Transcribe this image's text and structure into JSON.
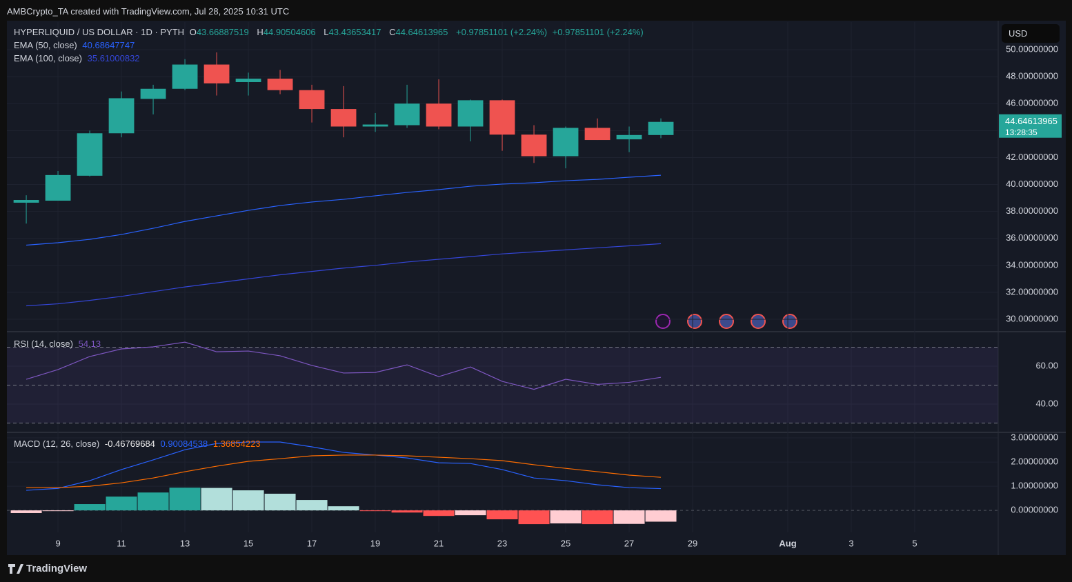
{
  "header": "AMBCrypto_TA created with TradingView.com, Jul 28, 2025 10:31 UTC",
  "currency": "USD",
  "brand": "TradingView",
  "chart_data": [
    {
      "type": "candlestick",
      "title": "HYPERLIQUID / US DOLLAR · 1D · PYTH",
      "ohlc_labels": [
        "O",
        "H",
        "L",
        "C"
      ],
      "change": "+0.97851101 (+2.24%)",
      "countdown": "13:28:35",
      "up_color": "#26a69a",
      "down_color": "#ef5350",
      "x": [
        8,
        9,
        10,
        11,
        12,
        13,
        14,
        15,
        16,
        17,
        18,
        19,
        20,
        21,
        22,
        23,
        24,
        25,
        26,
        27,
        28
      ],
      "open": [
        38.65,
        38.8,
        40.65,
        43.8,
        46.35,
        47.1,
        48.9,
        47.6,
        47.85,
        47.0,
        45.6,
        44.3,
        44.4,
        46.0,
        44.3,
        46.25,
        43.7,
        42.1,
        44.2,
        43.35,
        43.66887519
      ],
      "high": [
        39.2,
        41.0,
        44.0,
        46.9,
        47.4,
        49.3,
        49.8,
        48.3,
        48.5,
        47.4,
        47.3,
        45.3,
        47.4,
        47.8,
        46.3,
        46.3,
        44.4,
        44.3,
        44.9,
        44.3,
        44.90504606
      ],
      "low": [
        37.1,
        38.8,
        40.6,
        43.5,
        45.2,
        47.0,
        46.6,
        46.6,
        46.7,
        44.6,
        43.5,
        43.9,
        44.2,
        44.1,
        43.2,
        42.5,
        41.6,
        41.2,
        43.3,
        42.4,
        43.43653417
      ],
      "close": [
        38.85,
        40.7,
        43.8,
        46.4,
        47.1,
        48.9,
        47.5,
        47.85,
        47.0,
        45.6,
        44.3,
        44.45,
        46.0,
        44.3,
        46.25,
        43.7,
        42.1,
        44.2,
        43.3,
        43.67,
        44.64613965
      ],
      "series": [
        {
          "name": "EMA (50, close)",
          "color": "#2962ff",
          "values": [
            35.5,
            35.68,
            35.93,
            36.29,
            36.75,
            37.26,
            37.67,
            38.08,
            38.44,
            38.7,
            38.9,
            39.16,
            39.41,
            39.62,
            39.87,
            40.03,
            40.13,
            40.28,
            40.38,
            40.54,
            40.68647747
          ]
        },
        {
          "name": "EMA (100, close)",
          "color": "#3446d8",
          "values": [
            31.0,
            31.15,
            31.4,
            31.7,
            32.05,
            32.4,
            32.7,
            33.0,
            33.3,
            33.55,
            33.8,
            34.0,
            34.25,
            34.45,
            34.65,
            34.85,
            35.0,
            35.15,
            35.3,
            35.45,
            35.61000832
          ]
        }
      ],
      "ylim": [
        29.08,
        52.05
      ],
      "yticks": [
        {
          "value": 30,
          "label": "30.00000000"
        },
        {
          "value": 32,
          "label": "32.00000000"
        },
        {
          "value": 34,
          "label": "34.00000000"
        },
        {
          "value": 36,
          "label": "36.00000000"
        },
        {
          "value": 38,
          "label": "38.00000000"
        },
        {
          "value": 40,
          "label": "40.00000000"
        },
        {
          "value": 42,
          "label": "42.00000000"
        },
        {
          "value": 44,
          "label": "44.00000000"
        },
        {
          "value": 46,
          "label": "46.00000000"
        },
        {
          "value": 48,
          "label": "48.00000000"
        },
        {
          "value": 50,
          "label": "50.00000000"
        }
      ],
      "xlim": [
        7.39,
        38.63
      ],
      "xticks": [
        9,
        11,
        13,
        15,
        17,
        19,
        21,
        23,
        25,
        27,
        29,
        {
          "value": 32,
          "label": "Aug"
        },
        {
          "value": 34,
          "label": "3"
        },
        {
          "value": 36,
          "label": "5"
        }
      ],
      "grid": true
    },
    {
      "type": "rsi",
      "title": "RSI (14, close)",
      "series": [
        {
          "color": "#7e57c2",
          "values": [
            53.1,
            58.2,
            65.1,
            69.1,
            70.2,
            72.7,
            67.6,
            68.0,
            65.5,
            60.4,
            56.4,
            56.7,
            60.7,
            54.5,
            59.6,
            52.0,
            47.8,
            53.1,
            50.4,
            51.5,
            54.13
          ]
        }
      ],
      "bands": [
        70,
        50,
        30
      ],
      "ylim": [
        25.1,
        78.2
      ],
      "yticks": [
        {
          "value": 40,
          "label": "40.00"
        },
        {
          "value": 60,
          "label": "60.00"
        }
      ]
    },
    {
      "type": "macd",
      "title": "MACD (12, 26, close)",
      "series": [
        {
          "type": "histogram",
          "colors": [
            "#26a69a",
            "#b2dfdb",
            "#ffcdd2",
            "#ff5252"
          ],
          "values": [
            -0.11,
            -0.03,
            0.26,
            0.57,
            0.74,
            0.94,
            0.93,
            0.83,
            0.69,
            0.43,
            0.17,
            -0.03,
            -0.09,
            -0.23,
            -0.2,
            -0.37,
            -0.57,
            -0.54,
            -0.57,
            -0.56,
            -0.46769684
          ]
        },
        {
          "color": "#2962ff",
          "values": [
            0.83,
            0.91,
            1.23,
            1.69,
            2.09,
            2.51,
            2.77,
            2.83,
            2.83,
            2.63,
            2.4,
            2.29,
            2.17,
            1.97,
            1.94,
            1.69,
            1.34,
            1.23,
            1.06,
            0.94,
            0.90084538
          ]
        },
        {
          "color": "#ff6d00",
          "values": [
            0.94,
            0.94,
            1.0,
            1.14,
            1.34,
            1.6,
            1.83,
            2.03,
            2.14,
            2.26,
            2.29,
            2.29,
            2.26,
            2.2,
            2.14,
            2.06,
            1.89,
            1.74,
            1.6,
            1.46,
            1.36854223
          ]
        }
      ],
      "ylim": [
        -0.91,
        3.23
      ],
      "yticks": [
        {
          "value": 0,
          "label": "0.00000000"
        },
        {
          "value": 1,
          "label": "1.00000000"
        },
        {
          "value": 2,
          "label": "2.00000000"
        },
        {
          "value": 3,
          "label": "3.00000000"
        }
      ]
    }
  ]
}
